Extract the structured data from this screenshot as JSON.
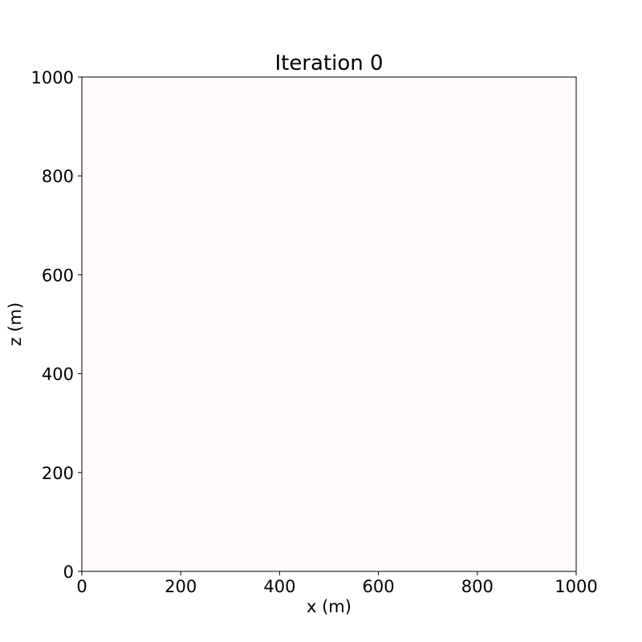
{
  "chart_data": {
    "type": "heatmap",
    "title": "Iteration 0",
    "xlabel": "x (m)",
    "ylabel": "z (m)",
    "xlim": [
      0,
      1000
    ],
    "ylim": [
      0,
      1000
    ],
    "xticks": [
      0,
      200,
      400,
      600,
      800,
      1000
    ],
    "yticks": [
      0,
      200,
      400,
      600,
      800,
      1000
    ],
    "xtick_labels": [
      "0",
      "200",
      "400",
      "600",
      "800",
      "1000"
    ],
    "ytick_labels": [
      "0",
      "200",
      "400",
      "600",
      "800",
      "1000"
    ],
    "grid": false,
    "field_color": "#fffbfd",
    "axis_color": "#000000"
  }
}
